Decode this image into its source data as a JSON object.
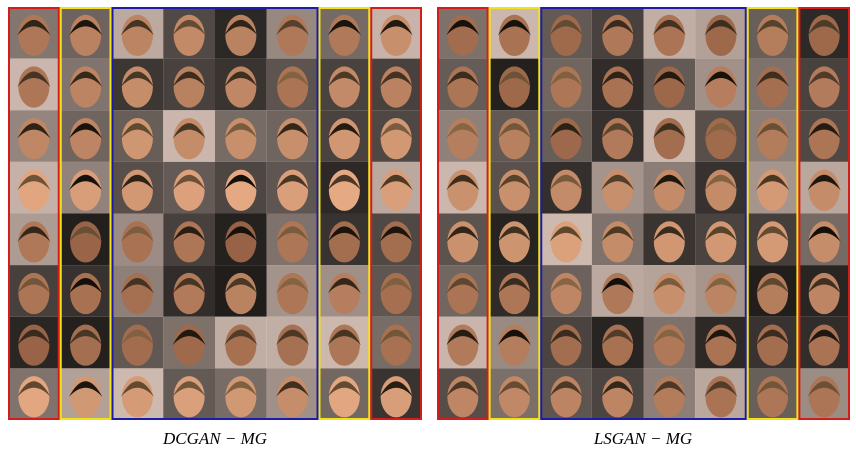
{
  "panels": [
    {
      "caption": "DCGAN − MG"
    },
    {
      "caption": "LSGAN − MG"
    }
  ]
}
